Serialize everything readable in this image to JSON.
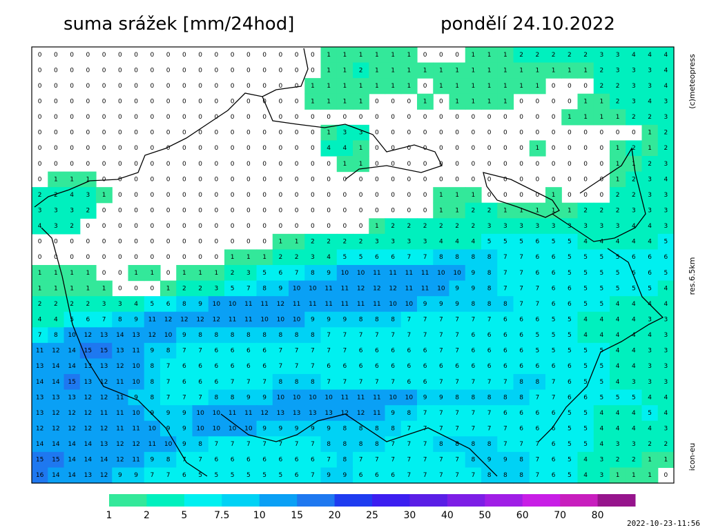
{
  "header": {
    "title": "suma srážek [mm/24hod]",
    "date": "pondělí 24.10.2022"
  },
  "labels": {
    "credit": "(c)meteopress",
    "resolution": "res.6.5km",
    "model": "icon-eu",
    "timestamp": "2022-10-23-11:56"
  },
  "legend": {
    "bounds": [
      1,
      2,
      5,
      7.5,
      10,
      15,
      20,
      25,
      30,
      40,
      50,
      60,
      70,
      80
    ],
    "colors": [
      "#33e89a",
      "#00f0be",
      "#00f0f0",
      "#00d2f5",
      "#0aa0f5",
      "#1e78f0",
      "#1e3cf0",
      "#3c1ef0",
      "#5a1ee6",
      "#7d1ee6",
      "#a01ee6",
      "#c81ee6",
      "#c81ebe",
      "#96148c"
    ]
  },
  "grid": {
    "rows": [
      [
        0,
        0,
        0,
        0,
        0,
        0,
        0,
        0,
        0,
        0,
        0,
        0,
        0,
        0,
        0,
        0,
        0,
        0,
        1,
        1,
        1,
        1,
        1,
        1,
        0,
        0,
        0,
        1,
        1,
        1,
        2,
        2,
        2,
        2,
        2,
        3,
        3,
        4,
        4,
        4
      ],
      [
        0,
        0,
        0,
        0,
        0,
        0,
        0,
        0,
        0,
        0,
        0,
        0,
        0,
        0,
        0,
        0,
        0,
        0,
        1,
        1,
        2,
        1,
        1,
        1,
        1,
        1,
        1,
        1,
        1,
        1,
        1,
        1,
        1,
        1,
        1,
        2,
        3,
        3,
        3,
        4
      ],
      [
        0,
        0,
        0,
        0,
        0,
        0,
        0,
        0,
        0,
        0,
        0,
        0,
        0,
        0,
        0,
        0,
        0,
        1,
        1,
        1,
        1,
        1,
        1,
        1,
        0,
        1,
        1,
        1,
        1,
        1,
        1,
        1,
        0,
        0,
        0,
        2,
        2,
        3,
        3,
        4
      ],
      [
        0,
        0,
        0,
        0,
        0,
        0,
        0,
        0,
        0,
        0,
        0,
        0,
        0,
        0,
        0,
        0,
        0,
        1,
        1,
        1,
        1,
        0,
        0,
        0,
        1,
        0,
        1,
        1,
        1,
        1,
        0,
        0,
        0,
        0,
        1,
        1,
        2,
        3,
        4,
        3
      ],
      [
        0,
        0,
        0,
        0,
        0,
        0,
        0,
        0,
        0,
        0,
        0,
        0,
        0,
        0,
        0,
        0,
        0,
        0,
        0,
        0,
        0,
        0,
        0,
        0,
        0,
        0,
        0,
        0,
        0,
        0,
        0,
        0,
        0,
        1,
        1,
        1,
        1,
        2,
        2,
        3
      ],
      [
        0,
        0,
        0,
        0,
        0,
        0,
        0,
        0,
        0,
        0,
        0,
        0,
        0,
        0,
        0,
        0,
        0,
        0,
        1,
        3,
        3,
        0,
        0,
        0,
        0,
        0,
        0,
        0,
        0,
        0,
        0,
        0,
        0,
        0,
        0,
        0,
        0,
        0,
        1,
        2
      ],
      [
        0,
        0,
        0,
        0,
        0,
        0,
        0,
        0,
        0,
        0,
        0,
        0,
        0,
        0,
        0,
        0,
        0,
        0,
        4,
        4,
        1,
        0,
        0,
        0,
        0,
        0,
        0,
        0,
        0,
        0,
        0,
        1,
        0,
        0,
        0,
        0,
        1,
        2,
        1,
        2
      ],
      [
        0,
        0,
        0,
        0,
        0,
        0,
        0,
        0,
        0,
        0,
        0,
        0,
        0,
        0,
        0,
        0,
        0,
        0,
        0,
        1,
        1,
        0,
        0,
        0,
        0,
        0,
        0,
        0,
        0,
        0,
        0,
        0,
        0,
        0,
        0,
        0,
        1,
        1,
        2,
        3
      ],
      [
        0,
        1,
        1,
        1,
        0,
        0,
        0,
        0,
        0,
        0,
        0,
        0,
        0,
        0,
        0,
        0,
        0,
        0,
        0,
        0,
        0,
        0,
        0,
        0,
        0,
        0,
        0,
        0,
        0,
        0,
        0,
        0,
        0,
        0,
        0,
        0,
        1,
        2,
        3,
        4
      ],
      [
        2,
        2,
        4,
        3,
        1,
        0,
        0,
        0,
        0,
        0,
        0,
        0,
        0,
        0,
        0,
        0,
        0,
        0,
        0,
        0,
        0,
        0,
        0,
        0,
        0,
        1,
        1,
        1,
        0,
        0,
        0,
        0,
        1,
        0,
        0,
        0,
        2,
        2,
        3,
        3
      ],
      [
        3,
        3,
        3,
        2,
        0,
        0,
        0,
        0,
        0,
        0,
        0,
        0,
        0,
        0,
        0,
        0,
        0,
        0,
        0,
        0,
        0,
        0,
        0,
        0,
        0,
        1,
        1,
        2,
        2,
        1,
        1,
        1,
        1,
        1,
        2,
        2,
        2,
        3,
        3,
        3
      ],
      [
        4,
        3,
        2,
        0,
        0,
        0,
        0,
        0,
        0,
        0,
        0,
        0,
        0,
        0,
        0,
        0,
        0,
        0,
        0,
        0,
        0,
        1,
        2,
        2,
        2,
        2,
        2,
        2,
        3,
        3,
        3,
        3,
        3,
        3,
        3,
        3,
        3,
        4,
        4,
        3
      ],
      [
        0,
        0,
        0,
        0,
        0,
        0,
        0,
        0,
        0,
        0,
        0,
        0,
        0,
        0,
        0,
        1,
        1,
        2,
        2,
        2,
        2,
        3,
        3,
        3,
        3,
        4,
        4,
        4,
        5,
        5,
        5,
        6,
        5,
        5,
        4,
        4,
        4,
        4,
        4,
        5
      ],
      [
        0,
        0,
        0,
        0,
        0,
        0,
        0,
        0,
        0,
        0,
        0,
        0,
        1,
        1,
        1,
        2,
        2,
        3,
        4,
        5,
        5,
        6,
        6,
        7,
        7,
        8,
        8,
        8,
        8,
        7,
        7,
        6,
        6,
        5,
        5,
        5,
        5,
        6,
        6,
        6
      ],
      [
        1,
        1,
        1,
        1,
        0,
        0,
        1,
        1,
        0,
        1,
        1,
        1,
        2,
        3,
        5,
        6,
        7,
        8,
        9,
        10,
        10,
        11,
        11,
        11,
        11,
        10,
        10,
        9,
        8,
        7,
        7,
        6,
        6,
        5,
        5,
        5,
        5,
        6,
        6,
        5
      ],
      [
        1,
        1,
        1,
        1,
        1,
        0,
        0,
        0,
        1,
        2,
        2,
        3,
        5,
        7,
        8,
        9,
        10,
        10,
        11,
        11,
        12,
        12,
        12,
        11,
        11,
        10,
        9,
        9,
        8,
        7,
        7,
        7,
        6,
        6,
        5,
        5,
        5,
        5,
        5,
        4
      ],
      [
        2,
        2,
        2,
        2,
        3,
        3,
        4,
        5,
        6,
        8,
        9,
        10,
        10,
        11,
        11,
        12,
        11,
        11,
        11,
        11,
        11,
        11,
        10,
        10,
        9,
        9,
        9,
        8,
        8,
        8,
        7,
        7,
        6,
        6,
        5,
        5,
        4,
        4,
        4,
        4
      ],
      [
        4,
        4,
        5,
        6,
        7,
        8,
        9,
        11,
        12,
        12,
        12,
        12,
        11,
        11,
        10,
        10,
        10,
        9,
        9,
        9,
        8,
        8,
        8,
        7,
        7,
        7,
        7,
        7,
        7,
        6,
        6,
        6,
        5,
        5,
        4,
        4,
        4,
        4,
        3,
        3
      ],
      [
        7,
        8,
        10,
        12,
        13,
        14,
        13,
        12,
        10,
        9,
        8,
        8,
        8,
        8,
        8,
        8,
        8,
        8,
        7,
        7,
        7,
        7,
        7,
        7,
        7,
        7,
        7,
        6,
        6,
        6,
        6,
        5,
        5,
        5,
        4,
        4,
        4,
        4,
        4,
        3
      ],
      [
        11,
        12,
        14,
        15,
        15,
        13,
        11,
        9,
        8,
        7,
        7,
        6,
        6,
        6,
        6,
        7,
        7,
        7,
        7,
        7,
        6,
        6,
        6,
        6,
        6,
        7,
        7,
        6,
        6,
        6,
        6,
        5,
        5,
        5,
        5,
        5,
        4,
        4,
        3,
        3
      ],
      [
        13,
        14,
        14,
        13,
        13,
        12,
        10,
        8,
        7,
        6,
        6,
        6,
        6,
        6,
        6,
        7,
        7,
        7,
        6,
        6,
        6,
        6,
        6,
        6,
        6,
        6,
        6,
        6,
        6,
        6,
        6,
        6,
        6,
        6,
        5,
        5,
        4,
        4,
        3,
        3
      ],
      [
        14,
        14,
        15,
        13,
        12,
        11,
        10,
        8,
        7,
        6,
        6,
        6,
        7,
        7,
        7,
        8,
        8,
        8,
        7,
        7,
        7,
        7,
        7,
        6,
        6,
        7,
        7,
        7,
        7,
        7,
        8,
        8,
        7,
        6,
        5,
        5,
        4,
        3,
        3,
        3
      ],
      [
        13,
        13,
        13,
        12,
        12,
        11,
        9,
        8,
        7,
        7,
        7,
        8,
        8,
        9,
        9,
        10,
        10,
        10,
        10,
        11,
        11,
        11,
        10,
        10,
        9,
        9,
        8,
        8,
        8,
        8,
        8,
        7,
        7,
        6,
        6,
        5,
        5,
        5,
        4,
        4
      ],
      [
        13,
        12,
        12,
        12,
        11,
        11,
        10,
        9,
        9,
        9,
        10,
        10,
        11,
        11,
        12,
        13,
        13,
        13,
        13,
        12,
        12,
        11,
        9,
        8,
        7,
        7,
        7,
        7,
        7,
        6,
        6,
        6,
        6,
        5,
        5,
        4,
        4,
        4,
        5,
        4
      ],
      [
        12,
        12,
        12,
        12,
        12,
        11,
        11,
        10,
        9,
        9,
        10,
        10,
        10,
        10,
        9,
        9,
        9,
        9,
        9,
        8,
        8,
        8,
        8,
        7,
        7,
        7,
        7,
        7,
        7,
        7,
        6,
        6,
        6,
        5,
        5,
        4,
        4,
        4,
        4,
        3
      ],
      [
        14,
        14,
        14,
        14,
        13,
        12,
        12,
        11,
        10,
        9,
        8,
        7,
        7,
        7,
        7,
        7,
        7,
        7,
        8,
        8,
        8,
        8,
        7,
        7,
        7,
        8,
        8,
        8,
        8,
        7,
        7,
        7,
        6,
        5,
        5,
        4,
        3,
        3,
        2,
        2
      ],
      [
        15,
        15,
        14,
        14,
        14,
        12,
        11,
        9,
        8,
        7,
        7,
        6,
        6,
        6,
        6,
        6,
        6,
        6,
        7,
        8,
        7,
        7,
        7,
        7,
        7,
        7,
        7,
        8,
        9,
        9,
        8,
        7,
        6,
        5,
        4,
        3,
        2,
        2,
        1,
        1
      ],
      [
        16,
        14,
        14,
        13,
        12,
        9,
        9,
        7,
        7,
        6,
        5,
        5,
        5,
        5,
        5,
        5,
        6,
        7,
        9,
        9,
        6,
        6,
        6,
        7,
        7,
        7,
        7,
        7,
        8,
        8,
        8,
        7,
        6,
        5,
        4,
        3,
        1,
        1,
        1,
        0
      ]
    ]
  }
}
